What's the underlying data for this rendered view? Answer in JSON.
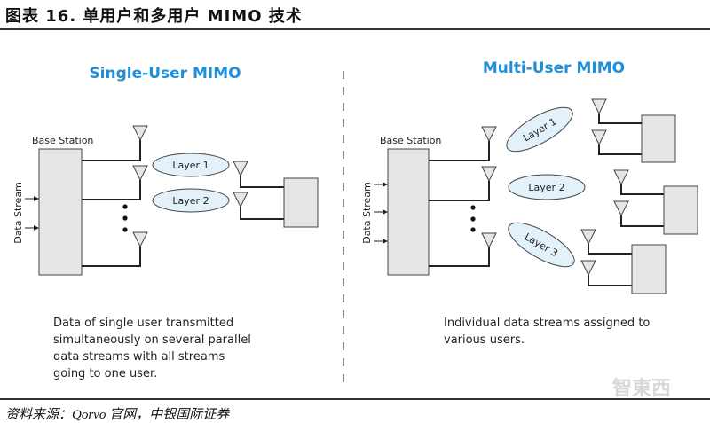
{
  "figure_title": "图表 16. 单用户和多用户 MIMO 技术",
  "source": "资料来源：Qorvo 官网，中银国际证券",
  "watermark": "智东西",
  "accent_color": "#1e8fd8",
  "single_user": {
    "heading": "Single-User MIMO",
    "base_station": "Base Station",
    "data_stream": "Data Stream",
    "layers": [
      "Layer 1",
      "Layer 2"
    ],
    "caption": [
      "Data of single user transmitted",
      "simultaneously on several parallel",
      "data streams with all streams",
      "going to one user."
    ]
  },
  "multi_user": {
    "heading": "Multi-User MIMO",
    "base_station": "Base Station",
    "data_stream": "Data Stream",
    "layers": [
      "Layer 1",
      "Layer 2",
      "Layer 3"
    ],
    "caption": [
      "Individual data streams assigned to",
      "various users."
    ]
  }
}
